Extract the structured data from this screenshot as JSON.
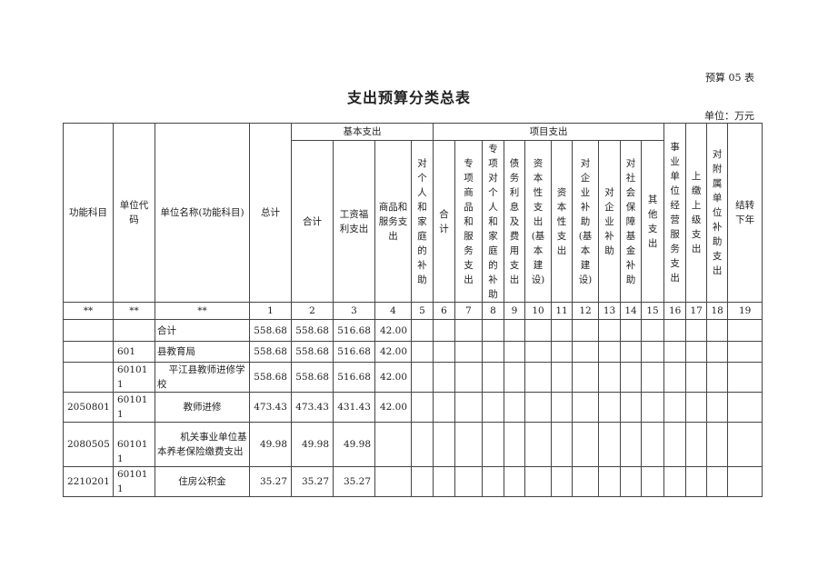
{
  "form_number": "预算 05 表",
  "title": "支出预算分类总表",
  "unit": "单位：万元",
  "table": {
    "group_headers": {
      "basic": "基本支出",
      "project": "项目支出"
    },
    "lead_headers": [
      "功能科目",
      "单位代码",
      "单位名称(功能科目)",
      "总计"
    ],
    "basic_headers": [
      "合计",
      "工资福利支出",
      "商品和服务支出",
      "对个人和家庭的补助"
    ],
    "project_headers": [
      "合计",
      "专项商品和服务支出",
      "专项对个人和家庭的补助",
      "债务利息及费用支出",
      "资本性支出(基本建设)",
      "资本性支出",
      "对企业补助(基本建设)",
      "对企业补助",
      "对社会保障基金补助",
      "其他支出"
    ],
    "tail_headers": [
      "事业单位经营服务支出",
      "上缴上级支出",
      "对附属单位补助支出",
      "结转下年"
    ],
    "number_row": [
      "**",
      "**",
      "**",
      "1",
      "2",
      "3",
      "4",
      "5",
      "6",
      "7",
      "8",
      "9",
      "10",
      "11",
      "12",
      "13",
      "14",
      "15",
      "16",
      "17",
      "18",
      "19"
    ],
    "rows": [
      {
        "func_code": "",
        "unit_code": "",
        "name": "合计",
        "values": [
          "558.68",
          "558.68",
          "516.68",
          "42.00"
        ]
      },
      {
        "func_code": "",
        "unit_code": "601",
        "name": "县教育局",
        "values": [
          "558.68",
          "558.68",
          "516.68",
          "42.00"
        ]
      },
      {
        "func_code": "",
        "unit_code": "601011",
        "name": "平江县教师进修学校",
        "values": [
          "558.68",
          "558.68",
          "516.68",
          "42.00"
        ]
      },
      {
        "func_code": "2050801",
        "unit_code": "601011",
        "name": "教师进修",
        "values": [
          "473.43",
          "473.43",
          "431.43",
          "42.00"
        ]
      },
      {
        "func_code": "2080505",
        "unit_code": "601011",
        "name": "机关事业单位基本养老保险缴费支出",
        "values": [
          "49.98",
          "49.98",
          "49.98",
          ""
        ]
      },
      {
        "func_code": "2210201",
        "unit_code": "601011",
        "name": "住房公积金",
        "values": [
          "35.27",
          "35.27",
          "35.27",
          ""
        ]
      }
    ]
  }
}
